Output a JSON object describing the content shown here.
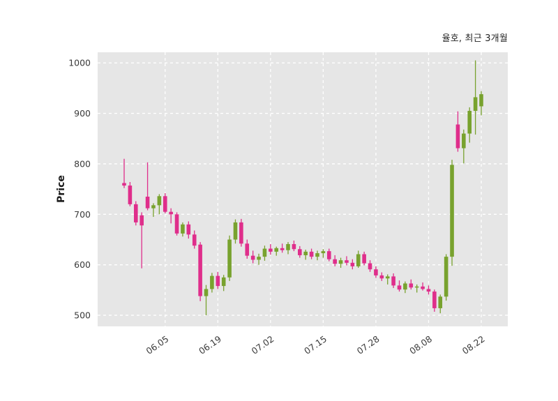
{
  "header": {
    "title": "율호, 최근 3개월"
  },
  "chart_data": {
    "type": "candlestick",
    "title": "율호, 최근 3개월",
    "xlabel": "",
    "ylabel": "Price",
    "ylim": [
      478,
      1021
    ],
    "yticks": [
      500,
      600,
      700,
      800,
      900,
      1000
    ],
    "xtick_labels": [
      "06.05",
      "06.19",
      "07.02",
      "07.15",
      "07.28",
      "08.08",
      "08.22"
    ],
    "xtick_indices": [
      7,
      16,
      25,
      34,
      43,
      52,
      61
    ],
    "grid": true,
    "legend": false,
    "up_color": "#78a22e",
    "down_color": "#df2e8b",
    "plot_bg": "#e6e6e6",
    "grid_color": "#ffffff",
    "dates": [
      "05.27",
      "05.28",
      "05.29",
      "05.30",
      "06.02",
      "06.03",
      "06.04",
      "06.05",
      "06.09",
      "06.10",
      "06.11",
      "06.12",
      "06.13",
      "06.16",
      "06.17",
      "06.18",
      "06.19",
      "06.20",
      "06.23",
      "06.24",
      "06.25",
      "06.26",
      "06.27",
      "06.30",
      "07.01",
      "07.02",
      "07.03",
      "07.04",
      "07.07",
      "07.08",
      "07.09",
      "07.10",
      "07.11",
      "07.14",
      "07.15",
      "07.16",
      "07.17",
      "07.18",
      "07.21",
      "07.22",
      "07.23",
      "07.24",
      "07.25",
      "07.28",
      "07.29",
      "07.30",
      "07.31",
      "08.01",
      "08.04",
      "08.05",
      "08.06",
      "08.07",
      "08.08",
      "08.11",
      "08.12",
      "08.13",
      "08.14",
      "08.18",
      "08.19",
      "08.20",
      "08.21",
      "08.22"
    ],
    "open": [
      762,
      757,
      720,
      698,
      735,
      712,
      718,
      736,
      705,
      700,
      662,
      680,
      660,
      640,
      538,
      552,
      578,
      558,
      575,
      650,
      684,
      642,
      618,
      610,
      616,
      632,
      626,
      633,
      629,
      641,
      631,
      619,
      626,
      616,
      623,
      627,
      611,
      602,
      609,
      604,
      597,
      621,
      603,
      591,
      579,
      573,
      577,
      559,
      551,
      563,
      555,
      557,
      552,
      547,
      514,
      537,
      616,
      878,
      831,
      860,
      905,
      914
    ],
    "high": [
      810,
      764,
      726,
      704,
      803,
      722,
      740,
      742,
      712,
      704,
      684,
      686,
      668,
      645,
      560,
      584,
      586,
      580,
      658,
      690,
      691,
      650,
      628,
      622,
      638,
      641,
      636,
      642,
      645,
      648,
      637,
      630,
      632,
      628,
      631,
      632,
      619,
      614,
      617,
      611,
      628,
      626,
      609,
      597,
      585,
      581,
      583,
      569,
      567,
      571,
      561,
      565,
      559,
      551,
      541,
      621,
      808,
      904,
      868,
      912,
      1005,
      944
    ],
    "low": [
      752,
      716,
      678,
      593,
      708,
      695,
      700,
      702,
      682,
      658,
      656,
      652,
      632,
      528,
      500,
      545,
      552,
      548,
      568,
      642,
      636,
      612,
      603,
      600,
      608,
      620,
      618,
      624,
      621,
      627,
      614,
      610,
      611,
      609,
      614,
      607,
      597,
      594,
      599,
      591,
      594,
      599,
      586,
      574,
      568,
      561,
      554,
      547,
      544,
      551,
      545,
      549,
      541,
      507,
      504,
      529,
      598,
      824,
      801,
      842,
      858,
      896
    ],
    "close": [
      757,
      720,
      684,
      678,
      712,
      718,
      736,
      705,
      700,
      662,
      680,
      660,
      638,
      538,
      552,
      578,
      558,
      575,
      650,
      684,
      642,
      618,
      610,
      616,
      632,
      626,
      633,
      629,
      641,
      631,
      619,
      626,
      616,
      623,
      627,
      611,
      602,
      609,
      604,
      597,
      621,
      603,
      591,
      579,
      573,
      577,
      559,
      551,
      563,
      555,
      557,
      552,
      547,
      514,
      537,
      616,
      798,
      831,
      860,
      905,
      932,
      938
    ]
  }
}
